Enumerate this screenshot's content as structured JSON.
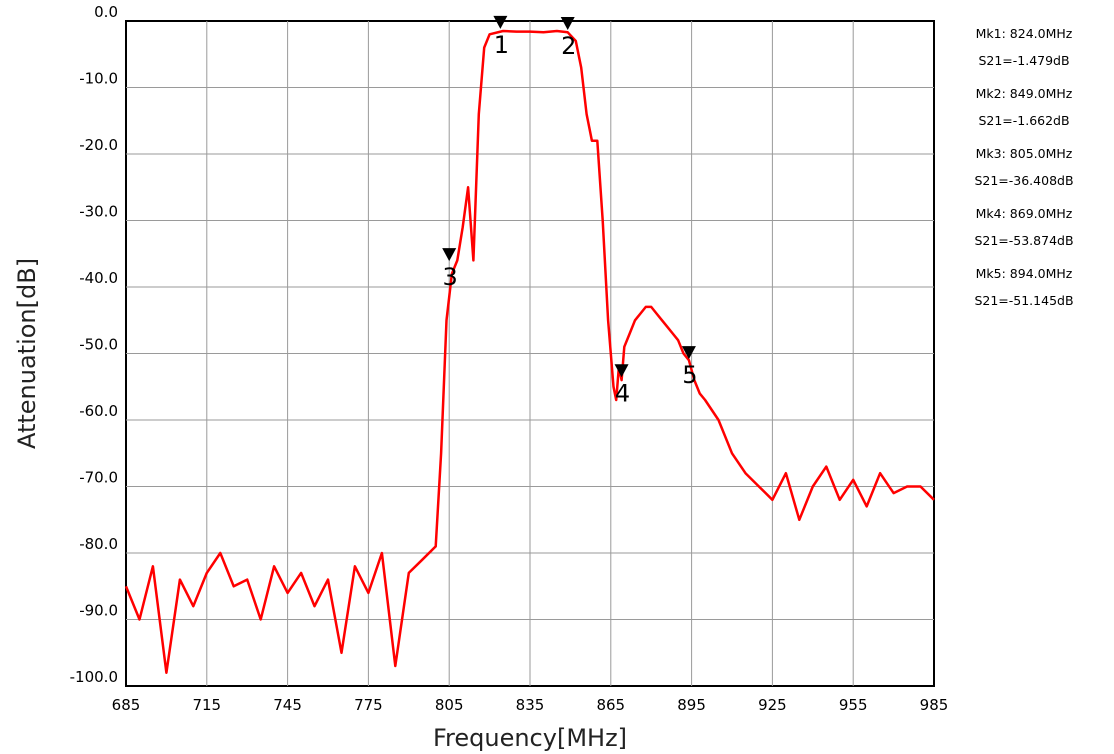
{
  "chart_data": {
    "type": "line",
    "title": "",
    "xlabel": "Frequency[MHz]",
    "ylabel": "Attenuation[dB]",
    "xlim": [
      685,
      985
    ],
    "ylim": [
      -100,
      0
    ],
    "grid": true,
    "x_ticks": [
      "685",
      "715",
      "745",
      "775",
      "805",
      "835",
      "865",
      "895",
      "925",
      "955",
      "985"
    ],
    "y_ticks": [
      "0.0",
      "-10.0",
      "-20.0",
      "-30.0",
      "-40.0",
      "-50.0",
      "-60.0",
      "-70.0",
      "-80.0",
      "-90.0",
      "-100.0"
    ],
    "line_color": "#ff0000",
    "series": [
      {
        "x": [
          685,
          690,
          695,
          700,
          705,
          710,
          715,
          720,
          725,
          730,
          735,
          740,
          745,
          750,
          755,
          760,
          765,
          770,
          775,
          780,
          785,
          790,
          795,
          800,
          802,
          804,
          806,
          808,
          810,
          812,
          814,
          816,
          818,
          820,
          825,
          830,
          835,
          840,
          845,
          849,
          852,
          854,
          856,
          858,
          860,
          862,
          864,
          866,
          867,
          868,
          869,
          870,
          872,
          874,
          876,
          878,
          880,
          882,
          884,
          886,
          888,
          890,
          892,
          894,
          896,
          898,
          900,
          905,
          910,
          915,
          920,
          925,
          930,
          935,
          940,
          945,
          950,
          955,
          960,
          965,
          970,
          975,
          980,
          985
        ],
        "y": [
          -85,
          -90,
          -82,
          -98,
          -84,
          -88,
          -83,
          -80,
          -85,
          -84,
          -90,
          -82,
          -86,
          -83,
          -88,
          -84,
          -95,
          -82,
          -86,
          -80,
          -97,
          -83,
          -81,
          -79,
          -65,
          -45,
          -38,
          -36,
          -31,
          -25,
          -36,
          -14,
          -4,
          -2,
          -1.5,
          -1.6,
          -1.6,
          -1.7,
          -1.5,
          -1.7,
          -3,
          -7,
          -14,
          -18,
          -18,
          -30,
          -45,
          -55,
          -57,
          -52,
          -54,
          -49,
          -47,
          -45,
          -44,
          -43,
          -43,
          -44,
          -45,
          -46,
          -47,
          -48,
          -50,
          -51,
          -54,
          -56,
          -57,
          -60,
          -65,
          -68,
          -70,
          -72,
          -68,
          -75,
          -70,
          -67,
          -72,
          -69,
          -73,
          -68,
          -71,
          -70,
          -70,
          -72
        ]
      }
    ],
    "markers": [
      {
        "num": "1",
        "x": 824.0,
        "y": -1.479
      },
      {
        "num": "2",
        "x": 849.0,
        "y": -1.662
      },
      {
        "num": "3",
        "x": 805.0,
        "y": -36.408
      },
      {
        "num": "4",
        "x": 869.0,
        "y": -53.874
      },
      {
        "num": "5",
        "x": 894.0,
        "y": -51.145
      }
    ],
    "legend": [
      {
        "line1": "Mk1:  824.0MHz",
        "line2": "S21=-1.479dB"
      },
      {
        "line1": "Mk2:  849.0MHz",
        "line2": "S21=-1.662dB"
      },
      {
        "line1": "Mk3:  805.0MHz",
        "line2": "S21=-36.408dB"
      },
      {
        "line1": "Mk4:  869.0MHz",
        "line2": "S21=-53.874dB"
      },
      {
        "line1": "Mk5:  894.0MHz",
        "line2": "S21=-51.145dB"
      }
    ]
  }
}
